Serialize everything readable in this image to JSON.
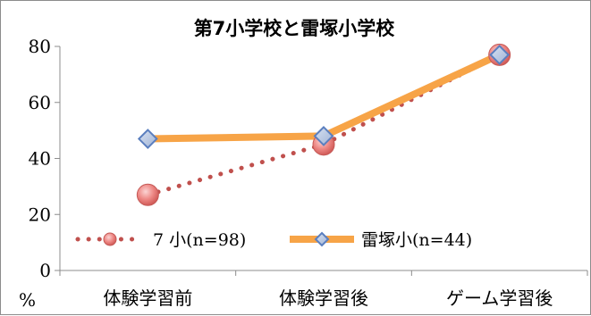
{
  "chart_data": {
    "type": "line",
    "title": "第7小学校と雷塚小学校",
    "ylabel": "%",
    "ylim": [
      0,
      80
    ],
    "yticks": [
      0,
      20,
      40,
      60,
      80
    ],
    "grid": false,
    "legend_position": "bottom-inside",
    "categories": [
      "体験学習前",
      "体験学習後",
      "ゲーム学習後"
    ],
    "series": [
      {
        "name": "7 小(n=98)",
        "values": [
          27,
          45,
          77
        ],
        "line_style": "dotted",
        "line_color": "#c0504d",
        "marker": "circle",
        "marker_color": "#e8807e"
      },
      {
        "name": "雷塚小(n=44)",
        "values": [
          47,
          48,
          77
        ],
        "line_style": "solid",
        "line_color": "#f7a447",
        "marker": "diamond",
        "marker_color": "#aebfdd",
        "marker_edge": "#5b7fbf"
      }
    ]
  }
}
